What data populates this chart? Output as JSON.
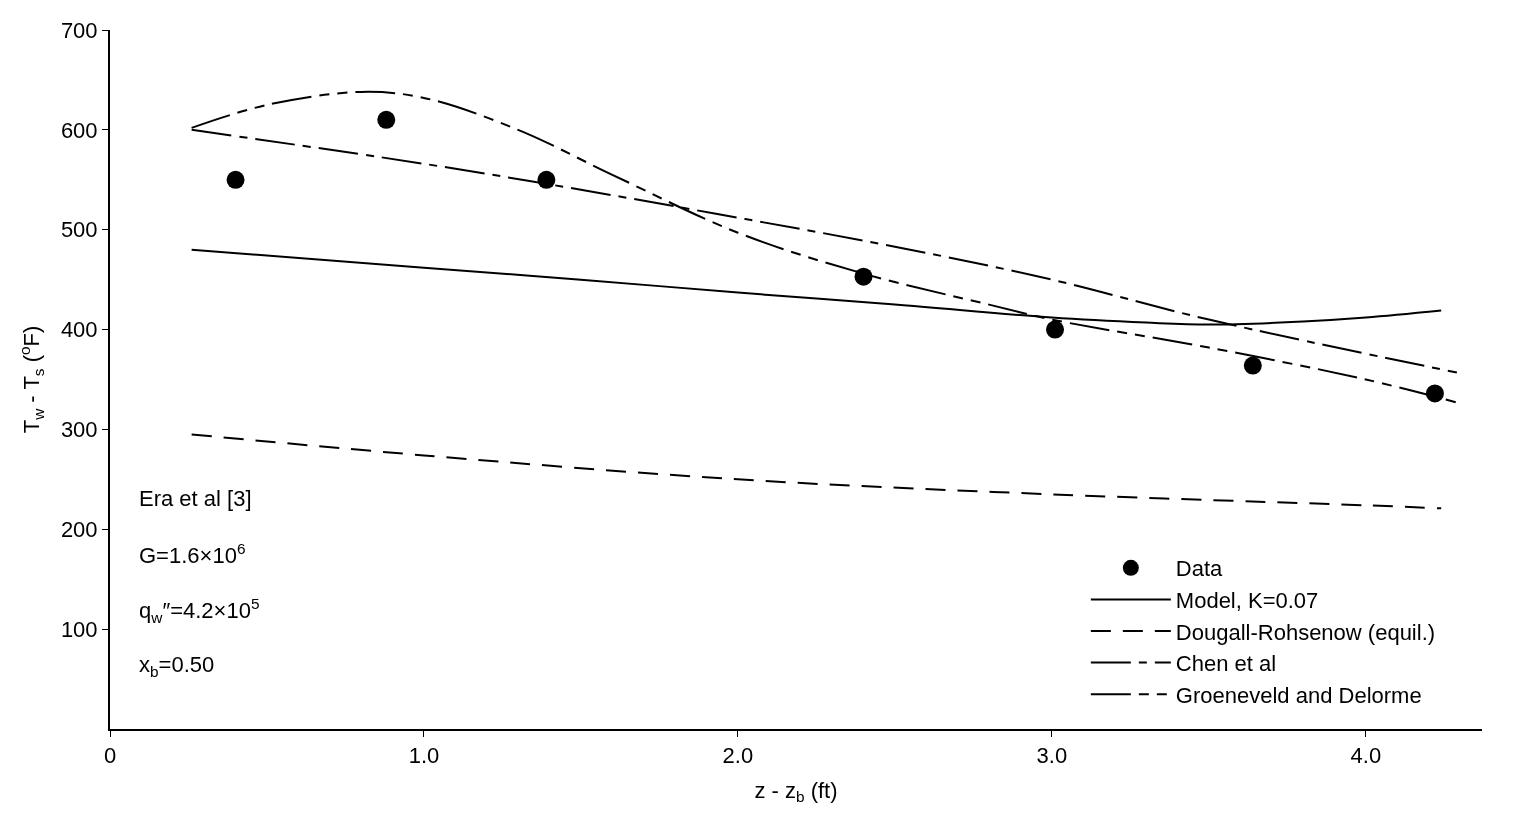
{
  "chart_data": {
    "type": "line",
    "xlabel": "z - z$_{b}$ (ft)",
    "ylabel": "T$_{w}$ - T$_{s}$ ($^{o}$F)",
    "xlim": [
      0,
      4.37
    ],
    "ylim": [
      0,
      700
    ],
    "xticks": [
      {
        "value": 0,
        "label": "0"
      },
      {
        "value": 1,
        "label": "1.0"
      },
      {
        "value": 2,
        "label": "2.0"
      },
      {
        "value": 3,
        "label": "3.0"
      },
      {
        "value": 4,
        "label": "4.0"
      }
    ],
    "yticks": [
      100,
      200,
      300,
      400,
      500,
      600,
      700
    ],
    "legend": "bottom right",
    "series": [
      {
        "name": "Data",
        "type": "scatter",
        "marker": "circle",
        "color": "#000000",
        "x": [
          0.4,
          0.88,
          1.39,
          2.4,
          3.01,
          3.64,
          4.22
        ],
        "values": [
          550,
          610,
          550,
          453,
          400,
          364,
          336
        ]
      },
      {
        "name": "Model, K=0.07",
        "line_style": "solid",
        "color": "#000000",
        "x": [
          0.26,
          1.0,
          1.5,
          2.0,
          2.5,
          3.0,
          3.3,
          3.5,
          3.8,
          4.0,
          4.24
        ],
        "values": [
          480,
          462,
          450,
          437,
          425,
          412,
          407,
          405,
          408,
          412,
          419
        ]
      },
      {
        "name": "Dougall-Rohsenow (equil.)",
        "line_style": "dashed",
        "color": "#000000",
        "x": [
          0.26,
          1.0,
          2.0,
          3.0,
          4.0,
          4.24
        ],
        "values": [
          295,
          274,
          250,
          235,
          224,
          221
        ]
      },
      {
        "name": "Chen et al",
        "line_style": "dashdot",
        "color": "#000000",
        "x": [
          0.26,
          1.0,
          1.5,
          2.0,
          2.5,
          3.0,
          3.5,
          4.29
        ],
        "values": [
          600,
          566,
          540,
          512,
          483,
          450,
          410,
          357
        ]
      },
      {
        "name": "Groeneveld and Delorme",
        "line_style": "dashdotdot",
        "color": "#000000",
        "x": [
          0.26,
          0.5,
          0.8,
          1.0,
          1.3,
          1.6,
          2.0,
          2.4,
          2.8,
          3.0,
          3.5,
          4.0,
          4.29
        ],
        "values": [
          602,
          625,
          638,
          632,
          600,
          555,
          497,
          456,
          425,
          410,
          382,
          350,
          327
        ]
      }
    ],
    "annotations": [
      "Era et al [3]",
      "G=1.6×10$^{6}$",
      "q$_{w}$″=4.2×10$^{5}$",
      "x$_{b}$=0.50"
    ]
  }
}
